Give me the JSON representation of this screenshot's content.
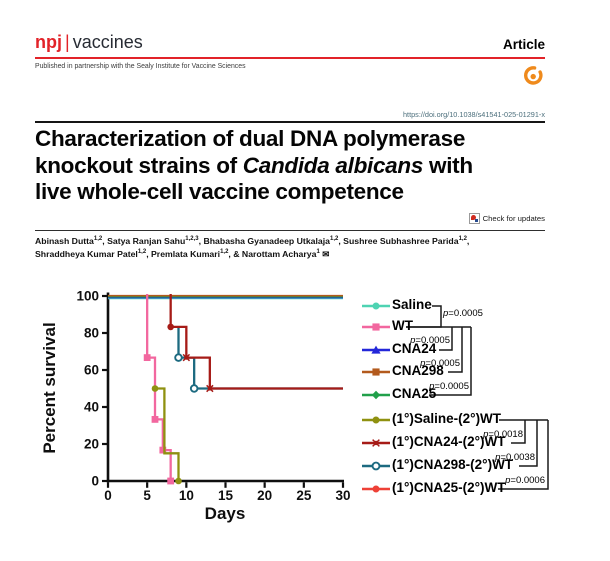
{
  "header": {
    "logo_npj": "npj",
    "logo_sep": "|",
    "logo_journal": "vaccines",
    "article_label": "Article",
    "partnership": "Published in partnership with the Sealy Institute for Vaccine Sciences",
    "doi": "https://doi.org/10.1038/s41541-025-01291-x",
    "check_updates": "Check for updates",
    "brand_red": "#e22329",
    "oa_orange": "#ef8a1c"
  },
  "title": {
    "lines": [
      [
        {
          "t": "Characterization of dual DNA polymerase"
        }
      ],
      [
        {
          "t": "knockout strains of "
        },
        {
          "t": "Candida albicans",
          "i": true
        },
        {
          "t": " with"
        }
      ],
      [
        {
          "t": "live whole-cell vaccine competence"
        }
      ]
    ]
  },
  "authors": {
    "list": [
      {
        "name": "Abinash Dutta",
        "sup": "1,2"
      },
      {
        "name": "Satya Ranjan Sahu",
        "sup": "1,2,3"
      },
      {
        "name": "Bhabasha Gyanadeep Utkalaja",
        "sup": "1,2"
      },
      {
        "name": "Sushree Subhashree Parida",
        "sup": "1,2"
      },
      {
        "name": "Shraddheya Kumar Patel",
        "sup": "1,2"
      },
      {
        "name": "Premlata Kumari",
        "sup": "1,2"
      },
      {
        "name": "Narottam Acharya",
        "sup": "1"
      }
    ],
    "corresponding_symbol": "✉"
  },
  "chart_data": {
    "type": "line",
    "subtype": "kaplan-meier-survival",
    "title": "",
    "xlabel": "Days",
    "ylabel": "Percent survival",
    "xlim": [
      0,
      30
    ],
    "ylim": [
      0,
      100
    ],
    "x_ticks": [
      0,
      5,
      10,
      15,
      20,
      25,
      30
    ],
    "y_ticks": [
      0,
      20,
      40,
      60,
      80,
      100
    ],
    "grid": false,
    "legend_position": "right",
    "series": [
      {
        "name": "Saline",
        "color": "#4ed3b2",
        "marker": "circle",
        "steps": [
          [
            0,
            100
          ],
          [
            30,
            100
          ]
        ],
        "marker_points": []
      },
      {
        "name": "WT",
        "color": "#f2679f",
        "marker": "square",
        "steps": [
          [
            0,
            100
          ],
          [
            5,
            100
          ],
          [
            5,
            66.7
          ],
          [
            6,
            66.7
          ],
          [
            6,
            33.3
          ],
          [
            7,
            33.3
          ],
          [
            7,
            16.7
          ],
          [
            8,
            16.7
          ],
          [
            8,
            0
          ]
        ],
        "marker_points": [
          [
            5,
            66.7
          ],
          [
            6,
            33.3
          ],
          [
            7,
            16.7
          ],
          [
            8,
            0
          ]
        ]
      },
      {
        "name": "CNA24",
        "color": "#2327d9",
        "marker": "triangle",
        "steps": [
          [
            0,
            100
          ],
          [
            30,
            100
          ]
        ],
        "marker_points": []
      },
      {
        "name": "CNA298",
        "color": "#b35a1d",
        "marker": "square",
        "steps": [
          [
            0,
            100
          ],
          [
            30,
            100
          ]
        ],
        "marker_points": []
      },
      {
        "name": "CNA25",
        "color": "#21a04a",
        "marker": "diamond",
        "steps": [
          [
            0,
            100
          ],
          [
            30,
            100
          ]
        ],
        "marker_points": []
      },
      {
        "name": "(1°)Saline-(2°)WT",
        "color": "#8f9110",
        "marker": "circle",
        "steps": [
          [
            0,
            100
          ],
          [
            6,
            100
          ],
          [
            6,
            50
          ],
          [
            7,
            50
          ],
          [
            7,
            16.7
          ],
          [
            9,
            16.7
          ],
          [
            9,
            0
          ]
        ],
        "marker_points": [
          [
            6,
            50
          ],
          [
            9,
            0
          ]
        ]
      },
      {
        "name": "(1°)CNA24-(2°)WT",
        "color": "#a61b17",
        "marker": "cross-circle",
        "steps": [
          [
            0,
            100
          ],
          [
            8,
            100
          ],
          [
            8,
            83.3
          ],
          [
            10,
            83.3
          ],
          [
            10,
            66.7
          ],
          [
            13,
            66.7
          ],
          [
            13,
            50
          ],
          [
            30,
            50
          ]
        ],
        "marker_points": [
          [
            8,
            83.3
          ],
          [
            10,
            66.7
          ],
          [
            13,
            50
          ]
        ]
      },
      {
        "name": "(1°)CNA298-(2°)WT",
        "color": "#1c6a80",
        "marker": "circle-open",
        "steps": [
          [
            0,
            100
          ],
          [
            8,
            100
          ],
          [
            8,
            83.3
          ],
          [
            9,
            83.3
          ],
          [
            9,
            66.7
          ],
          [
            11,
            66.7
          ],
          [
            11,
            50
          ],
          [
            30,
            50
          ]
        ],
        "marker_points": [
          [
            9,
            66.7
          ],
          [
            11,
            50
          ]
        ]
      },
      {
        "name": "(1°)CNA25-(2°)WT",
        "color": "#ee4137",
        "marker": "circle",
        "steps": [
          [
            0,
            100
          ],
          [
            30,
            100
          ]
        ],
        "marker_points": []
      }
    ],
    "comparisons": [
      {
        "a": "Saline",
        "b": "WT",
        "p": "p=0.0005"
      },
      {
        "a": "WT",
        "b": "CNA24",
        "p": "p=0.0005"
      },
      {
        "a": "WT",
        "b": "CNA298",
        "p": "p=0.0005"
      },
      {
        "a": "WT",
        "b": "CNA25",
        "p": "p=0.0005"
      },
      {
        "a": "(1°)Saline-(2°)WT",
        "b": "(1°)CNA24-(2°)WT",
        "p": "p=0.0018"
      },
      {
        "a": "(1°)Saline-(2°)WT",
        "b": "(1°)CNA298-(2°)WT",
        "p": "p=0.0038"
      },
      {
        "a": "(1°)Saline-(2°)WT",
        "b": "(1°)CNA25-(2°)WT",
        "p": "p=0.0006"
      }
    ]
  }
}
